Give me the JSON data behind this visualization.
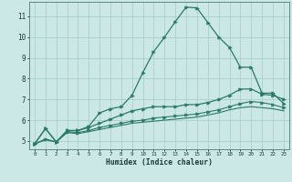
{
  "xlabel": "Humidex (Indice chaleur)",
  "bg_color": "#cce8e6",
  "grid_color": "#aacfcc",
  "line_color": "#2a7a6a",
  "xlim": [
    -0.5,
    23.5
  ],
  "ylim": [
    4.6,
    11.7
  ],
  "xticks": [
    0,
    1,
    2,
    3,
    4,
    5,
    6,
    7,
    8,
    9,
    10,
    11,
    12,
    13,
    14,
    15,
    16,
    17,
    18,
    19,
    20,
    21,
    22,
    23
  ],
  "yticks": [
    5,
    6,
    7,
    8,
    9,
    10,
    11
  ],
  "line1_x": [
    0,
    1,
    2,
    3,
    4,
    5,
    6,
    7,
    8,
    9,
    10,
    11,
    12,
    13,
    14,
    15,
    16,
    17,
    18,
    19,
    20,
    21,
    22,
    23
  ],
  "line1_y": [
    4.85,
    5.6,
    4.95,
    5.5,
    5.5,
    5.7,
    6.35,
    6.55,
    6.65,
    7.2,
    8.3,
    9.3,
    10.0,
    10.75,
    11.45,
    11.4,
    10.7,
    10.0,
    9.5,
    8.55,
    8.55,
    7.3,
    7.3,
    6.8
  ],
  "line2_x": [
    0,
    1,
    2,
    3,
    4,
    5,
    6,
    7,
    8,
    9,
    10,
    11,
    12,
    13,
    14,
    15,
    16,
    17,
    18,
    19,
    20,
    21,
    22,
    23
  ],
  "line2_y": [
    4.85,
    5.6,
    4.95,
    5.5,
    5.5,
    5.65,
    5.85,
    6.05,
    6.25,
    6.45,
    6.55,
    6.65,
    6.65,
    6.65,
    6.75,
    6.75,
    6.85,
    7.0,
    7.2,
    7.5,
    7.5,
    7.25,
    7.2,
    7.0
  ],
  "line3_x": [
    0,
    1,
    2,
    3,
    4,
    5,
    6,
    7,
    8,
    9,
    10,
    11,
    12,
    13,
    14,
    15,
    16,
    17,
    18,
    19,
    20,
    21,
    22,
    23
  ],
  "line3_y": [
    4.85,
    5.1,
    4.95,
    5.45,
    5.4,
    5.5,
    5.65,
    5.75,
    5.85,
    5.95,
    6.0,
    6.1,
    6.15,
    6.2,
    6.25,
    6.3,
    6.4,
    6.5,
    6.65,
    6.8,
    6.9,
    6.85,
    6.75,
    6.6
  ],
  "line4_x": [
    0,
    1,
    2,
    3,
    4,
    5,
    6,
    7,
    8,
    9,
    10,
    11,
    12,
    13,
    14,
    15,
    16,
    17,
    18,
    19,
    20,
    21,
    22,
    23
  ],
  "line4_y": [
    4.85,
    5.05,
    4.95,
    5.4,
    5.35,
    5.45,
    5.55,
    5.65,
    5.75,
    5.85,
    5.9,
    5.95,
    6.0,
    6.05,
    6.1,
    6.15,
    6.25,
    6.35,
    6.5,
    6.6,
    6.65,
    6.6,
    6.55,
    6.45
  ]
}
